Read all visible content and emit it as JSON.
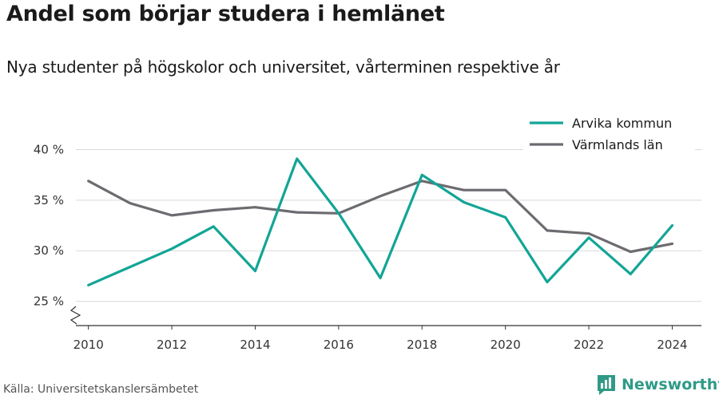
{
  "title": "Andel som börjar studera i hemlänet",
  "subtitle": "Nya studenter på högskolor och universitet, vårterminen respektive år",
  "source": "Källa: Universitetskanslersämbetet",
  "brand": "Newsworthy",
  "colors": {
    "arvika": "#12a596",
    "varmland": "#6d6b70",
    "brand": "#2f9a86",
    "grid": "#d9d9d9"
  },
  "chart_data": {
    "type": "line",
    "x": [
      2010,
      2011,
      2012,
      2013,
      2014,
      2015,
      2016,
      2017,
      2018,
      2019,
      2020,
      2021,
      2022,
      2023,
      2024
    ],
    "xticks": [
      2010,
      2012,
      2014,
      2016,
      2018,
      2020,
      2022,
      2024
    ],
    "ytick_values": [
      25,
      30,
      35,
      40
    ],
    "ytick_labels": [
      "25 %",
      "30 %",
      "35 %",
      "40 %"
    ],
    "ylim": [
      22.6,
      40.0
    ],
    "xlim": [
      2009.7,
      2024.7
    ],
    "grid": true,
    "legend_position": "top-right",
    "axis_break": "y",
    "series": [
      {
        "name": "Arvika kommun",
        "color": "#12a596",
        "values": [
          26.6,
          28.4,
          30.2,
          32.4,
          28.0,
          39.1,
          33.7,
          27.3,
          37.5,
          34.8,
          33.3,
          26.9,
          31.3,
          27.7,
          32.5
        ]
      },
      {
        "name": "Värmlands län",
        "color": "#6d6b70",
        "values": [
          36.9,
          34.7,
          33.5,
          34.0,
          34.3,
          33.8,
          33.7,
          35.4,
          36.9,
          36.0,
          36.0,
          32.0,
          31.7,
          29.9,
          30.7
        ]
      }
    ]
  }
}
